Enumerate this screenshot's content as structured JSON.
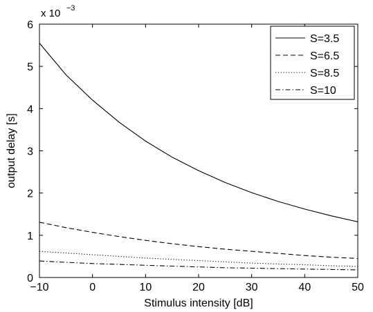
{
  "chart_data": {
    "type": "line",
    "title": "",
    "xlabel": "Stimulus intensity [dB]",
    "ylabel": "output delay [s]",
    "y_exponent_label": "x 10",
    "y_exponent_power": "−3",
    "xlim": [
      -10,
      50
    ],
    "ylim": [
      0,
      6
    ],
    "xticks": [
      -10,
      0,
      10,
      20,
      30,
      40,
      50
    ],
    "xtick_labels": [
      "−10",
      "0",
      "10",
      "20",
      "30",
      "40",
      "50"
    ],
    "yticks": [
      0,
      1,
      2,
      3,
      4,
      5,
      6
    ],
    "ytick_labels": [
      "0",
      "1",
      "2",
      "3",
      "4",
      "5",
      "6"
    ],
    "grid": false,
    "legend_position": "top-right",
    "x": [
      -10,
      -5,
      0,
      5,
      10,
      15,
      20,
      25,
      30,
      35,
      40,
      45,
      50
    ],
    "series": [
      {
        "name": "S=3.5",
        "dash": "solid",
        "values": [
          5.55,
          4.8,
          4.2,
          3.68,
          3.23,
          2.85,
          2.53,
          2.25,
          2.01,
          1.8,
          1.62,
          1.46,
          1.32
        ]
      },
      {
        "name": "S=6.5",
        "dash": "dashed",
        "values": [
          1.31,
          1.18,
          1.07,
          0.97,
          0.88,
          0.8,
          0.73,
          0.67,
          0.62,
          0.57,
          0.52,
          0.48,
          0.45
        ]
      },
      {
        "name": "S=8.5",
        "dash": "dotted",
        "values": [
          0.62,
          0.58,
          0.54,
          0.5,
          0.46,
          0.43,
          0.4,
          0.37,
          0.34,
          0.32,
          0.3,
          0.28,
          0.26
        ]
      },
      {
        "name": "S=10",
        "dash": "dashdot",
        "values": [
          0.39,
          0.36,
          0.33,
          0.31,
          0.29,
          0.27,
          0.25,
          0.23,
          0.22,
          0.21,
          0.2,
          0.19,
          0.18
        ]
      }
    ]
  }
}
